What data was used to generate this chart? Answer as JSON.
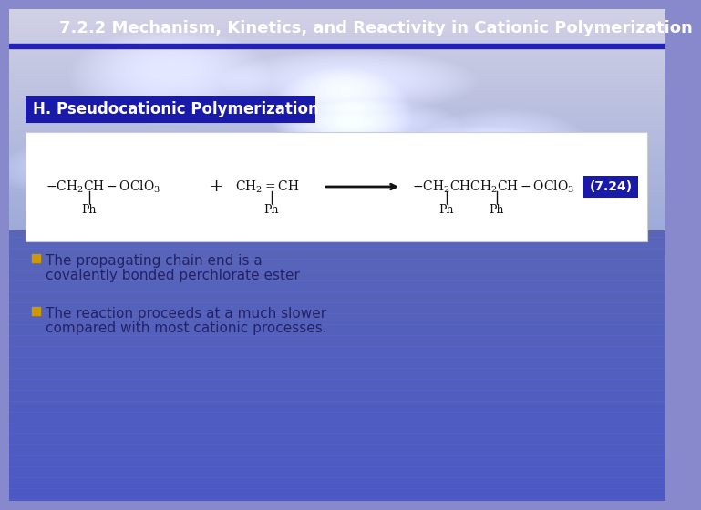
{
  "title": "7.2.2 Mechanism, Kinetics, and Reactivity in Cationic Polymerization",
  "subtitle": "H. Pseudocationic Polymerization",
  "equation_label": "(7.24)",
  "bullet1_line1": "The propagating chain end is a",
  "bullet1_line2": "covalently bonded perchlorate ester",
  "bullet2_line1": "The reaction proceeds at a much slower",
  "bullet2_line2": "compared with most cationic processes.",
  "title_bar_color": "#2222bb",
  "subtitle_box_color": "#1a1aaa",
  "eq_box_color": "#1a1aaa",
  "white_box_color": "#ffffff",
  "title_text_color": "#ffffff",
  "subtitle_text_color": "#ffffff",
  "eq_label_color": "#ffffff",
  "body_text_color": "#222266",
  "bullet_color": "#cc9900",
  "title_fontsize": 13,
  "subtitle_fontsize": 12,
  "body_fontsize": 11,
  "eq_fontsize": 10
}
